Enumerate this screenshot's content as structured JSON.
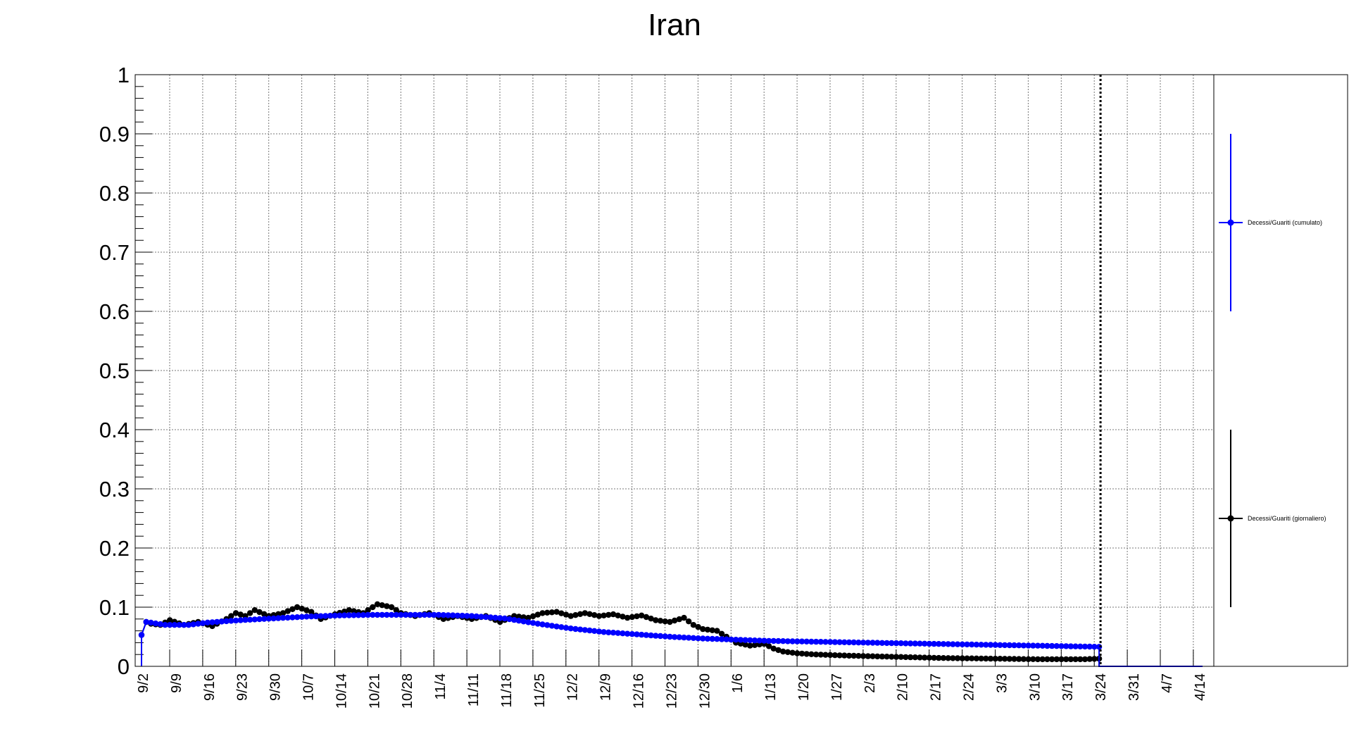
{
  "chart_data": {
    "type": "line",
    "title": "Iran",
    "ylim": [
      0,
      1
    ],
    "yticks": [
      "0",
      "0.1",
      "0.2",
      "0.3",
      "0.4",
      "0.5",
      "0.6",
      "0.7",
      "0.8",
      "0.9",
      "1"
    ],
    "xlabels": [
      "9/2",
      "9/9",
      "9/16",
      "9/23",
      "9/30",
      "10/7",
      "10/14",
      "10/21",
      "10/28",
      "11/4",
      "11/11",
      "11/18",
      "11/25",
      "12/2",
      "12/9",
      "12/16",
      "12/23",
      "12/30",
      "1/6",
      "1/13",
      "1/20",
      "1/27",
      "2/3",
      "2/10",
      "2/17",
      "2/24",
      "3/3",
      "3/10",
      "3/17",
      "3/24",
      "3/31",
      "4/7",
      "4/14"
    ],
    "grid": true,
    "marker_line_label": "3/24",
    "legend_position": "right",
    "series": [
      {
        "name": "Decessi/Guariti (cumulato)",
        "color": "#0000ff",
        "anchors": [
          [
            0,
            0.053
          ],
          [
            1,
            0.075
          ],
          [
            5,
            0.07
          ],
          [
            10,
            0.07
          ],
          [
            14,
            0.074
          ],
          [
            21,
            0.078
          ],
          [
            28,
            0.081
          ],
          [
            35,
            0.084
          ],
          [
            42,
            0.086
          ],
          [
            49,
            0.087
          ],
          [
            56,
            0.087
          ],
          [
            63,
            0.087
          ],
          [
            70,
            0.085
          ],
          [
            77,
            0.081
          ],
          [
            84,
            0.072
          ],
          [
            91,
            0.064
          ],
          [
            98,
            0.058
          ],
          [
            105,
            0.054
          ],
          [
            112,
            0.05
          ],
          [
            119,
            0.047
          ],
          [
            126,
            0.045
          ],
          [
            133,
            0.043
          ],
          [
            140,
            0.042
          ],
          [
            147,
            0.041
          ],
          [
            154,
            0.04
          ],
          [
            161,
            0.039
          ],
          [
            168,
            0.038
          ],
          [
            175,
            0.037
          ],
          [
            182,
            0.036
          ],
          [
            189,
            0.035
          ],
          [
            196,
            0.034
          ],
          [
            203,
            0.033
          ]
        ],
        "error_bar": [
          0.6,
          0.9
        ],
        "legend_value": 0.75
      },
      {
        "name": "Decessi/Guariti (giornaliero)",
        "color": "#000000",
        "anchors": [
          [
            0,
            0.053
          ],
          [
            1,
            0.075
          ],
          [
            2,
            0.072
          ],
          [
            4,
            0.07
          ],
          [
            6,
            0.078
          ],
          [
            9,
            0.07
          ],
          [
            12,
            0.075
          ],
          [
            15,
            0.068
          ],
          [
            18,
            0.08
          ],
          [
            20,
            0.09
          ],
          [
            22,
            0.085
          ],
          [
            24,
            0.095
          ],
          [
            27,
            0.085
          ],
          [
            30,
            0.09
          ],
          [
            33,
            0.1
          ],
          [
            36,
            0.092
          ],
          [
            38,
            0.08
          ],
          [
            41,
            0.088
          ],
          [
            44,
            0.095
          ],
          [
            47,
            0.09
          ],
          [
            50,
            0.105
          ],
          [
            53,
            0.1
          ],
          [
            55,
            0.09
          ],
          [
            58,
            0.085
          ],
          [
            61,
            0.09
          ],
          [
            64,
            0.08
          ],
          [
            67,
            0.085
          ],
          [
            70,
            0.08
          ],
          [
            73,
            0.085
          ],
          [
            76,
            0.075
          ],
          [
            79,
            0.085
          ],
          [
            82,
            0.082
          ],
          [
            85,
            0.09
          ],
          [
            88,
            0.092
          ],
          [
            91,
            0.085
          ],
          [
            94,
            0.09
          ],
          [
            97,
            0.085
          ],
          [
            100,
            0.088
          ],
          [
            103,
            0.082
          ],
          [
            106,
            0.086
          ],
          [
            109,
            0.078
          ],
          [
            112,
            0.075
          ],
          [
            115,
            0.082
          ],
          [
            117,
            0.07
          ],
          [
            119,
            0.063
          ],
          [
            122,
            0.06
          ],
          [
            124,
            0.05
          ],
          [
            126,
            0.04
          ],
          [
            129,
            0.035
          ],
          [
            132,
            0.038
          ],
          [
            134,
            0.03
          ],
          [
            136,
            0.025
          ],
          [
            139,
            0.022
          ],
          [
            143,
            0.02
          ],
          [
            150,
            0.018
          ],
          [
            160,
            0.016
          ],
          [
            170,
            0.014
          ],
          [
            180,
            0.013
          ],
          [
            190,
            0.012
          ],
          [
            200,
            0.012
          ],
          [
            203,
            0.013
          ]
        ],
        "error_bar": [
          0.1,
          0.4
        ],
        "legend_value": 0.25
      }
    ]
  }
}
